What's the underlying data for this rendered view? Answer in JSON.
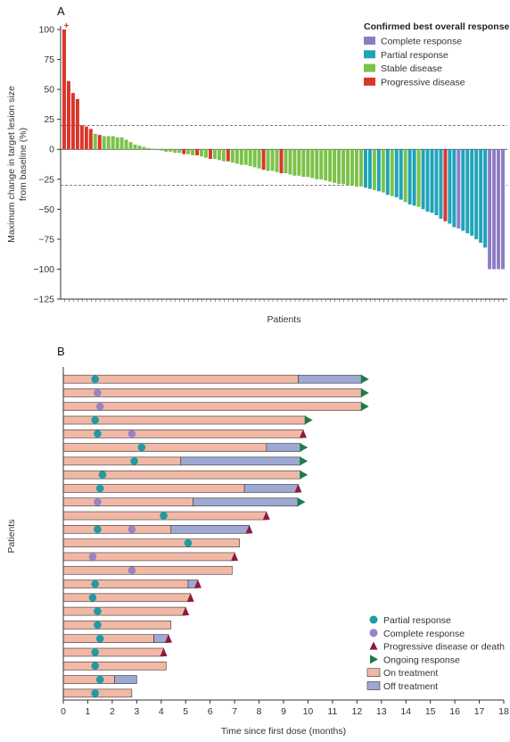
{
  "chart_data": [
    {
      "panel": "A",
      "type": "bar",
      "ylabel_lines": [
        "Maximum change in target lesion size",
        "from baseline (%)"
      ],
      "xlabel": "Patients",
      "ylim": [
        -125,
        100
      ],
      "yticks": [
        100,
        75,
        50,
        25,
        0,
        -25,
        -50,
        -75,
        -100,
        -125
      ],
      "reference_lines": [
        20,
        -30
      ],
      "legend": {
        "title": "Confirmed best overall response",
        "position": "top-right",
        "items": [
          {
            "label": "Complete response",
            "color": "#8e7cc3"
          },
          {
            "label": "Partial response",
            "color": "#20a3b9"
          },
          {
            "label": "Stable disease",
            "color": "#7cc24a"
          },
          {
            "label": "Progressive disease",
            "color": "#d9362b"
          }
        ]
      },
      "colors": {
        "CR": "#8e7cc3",
        "PR": "#20a3b9",
        "SD": "#7cc24a",
        "PD": "#d9362b"
      },
      "bars": [
        {
          "value": 100,
          "response": "PD",
          "marker": "+"
        },
        {
          "value": 57,
          "response": "PD"
        },
        {
          "value": 47,
          "response": "PD"
        },
        {
          "value": 42,
          "response": "PD"
        },
        {
          "value": 20,
          "response": "PD"
        },
        {
          "value": 19,
          "response": "PD"
        },
        {
          "value": 17,
          "response": "PD"
        },
        {
          "value": 13,
          "response": "SD"
        },
        {
          "value": 12,
          "response": "PD"
        },
        {
          "value": 11,
          "response": "SD"
        },
        {
          "value": 11,
          "response": "SD"
        },
        {
          "value": 11,
          "response": "SD"
        },
        {
          "value": 10,
          "response": "SD"
        },
        {
          "value": 10,
          "response": "SD"
        },
        {
          "value": 8,
          "response": "SD"
        },
        {
          "value": 6,
          "response": "SD"
        },
        {
          "value": 4,
          "response": "SD"
        },
        {
          "value": 3,
          "response": "SD"
        },
        {
          "value": 2,
          "response": "SD"
        },
        {
          "value": 1,
          "response": "SD"
        },
        {
          "value": 0.5,
          "response": "SD"
        },
        {
          "value": 0,
          "response": "SD"
        },
        {
          "value": -1,
          "response": "SD"
        },
        {
          "value": -2,
          "response": "SD"
        },
        {
          "value": -2,
          "response": "SD"
        },
        {
          "value": -3,
          "response": "SD"
        },
        {
          "value": -3,
          "response": "SD"
        },
        {
          "value": -4,
          "response": "PD"
        },
        {
          "value": -4,
          "response": "SD"
        },
        {
          "value": -5,
          "response": "SD"
        },
        {
          "value": -5,
          "response": "PD"
        },
        {
          "value": -6,
          "response": "SD"
        },
        {
          "value": -7,
          "response": "SD"
        },
        {
          "value": -8,
          "response": "PD"
        },
        {
          "value": -8,
          "response": "SD"
        },
        {
          "value": -9,
          "response": "SD"
        },
        {
          "value": -10,
          "response": "SD"
        },
        {
          "value": -10,
          "response": "PD"
        },
        {
          "value": -11,
          "response": "SD"
        },
        {
          "value": -12,
          "response": "SD"
        },
        {
          "value": -13,
          "response": "SD"
        },
        {
          "value": -13,
          "response": "SD"
        },
        {
          "value": -14,
          "response": "SD"
        },
        {
          "value": -15,
          "response": "SD"
        },
        {
          "value": -16,
          "response": "SD"
        },
        {
          "value": -17,
          "response": "PD"
        },
        {
          "value": -18,
          "response": "SD"
        },
        {
          "value": -18,
          "response": "SD"
        },
        {
          "value": -19,
          "response": "SD"
        },
        {
          "value": -20,
          "response": "PD"
        },
        {
          "value": -20,
          "response": "SD"
        },
        {
          "value": -21,
          "response": "SD"
        },
        {
          "value": -22,
          "response": "SD"
        },
        {
          "value": -22,
          "response": "SD"
        },
        {
          "value": -23,
          "response": "SD"
        },
        {
          "value": -23,
          "response": "SD"
        },
        {
          "value": -24,
          "response": "SD"
        },
        {
          "value": -25,
          "response": "SD"
        },
        {
          "value": -25,
          "response": "SD"
        },
        {
          "value": -26,
          "response": "SD"
        },
        {
          "value": -27,
          "response": "SD"
        },
        {
          "value": -28,
          "response": "SD"
        },
        {
          "value": -29,
          "response": "SD"
        },
        {
          "value": -29,
          "response": "SD"
        },
        {
          "value": -30,
          "response": "SD"
        },
        {
          "value": -30,
          "response": "SD"
        },
        {
          "value": -31,
          "response": "SD"
        },
        {
          "value": -31,
          "response": "SD"
        },
        {
          "value": -32,
          "response": "PR"
        },
        {
          "value": -33,
          "response": "PR"
        },
        {
          "value": -34,
          "response": "SD"
        },
        {
          "value": -35,
          "response": "PR"
        },
        {
          "value": -36,
          "response": "SD"
        },
        {
          "value": -38,
          "response": "PR"
        },
        {
          "value": -39,
          "response": "SD"
        },
        {
          "value": -40,
          "response": "PR"
        },
        {
          "value": -42,
          "response": "PR"
        },
        {
          "value": -44,
          "response": "SD"
        },
        {
          "value": -46,
          "response": "PR"
        },
        {
          "value": -47,
          "response": "PR"
        },
        {
          "value": -48,
          "response": "SD"
        },
        {
          "value": -50,
          "response": "PR"
        },
        {
          "value": -52,
          "response": "PR"
        },
        {
          "value": -53,
          "response": "PR"
        },
        {
          "value": -55,
          "response": "PR"
        },
        {
          "value": -58,
          "response": "PR"
        },
        {
          "value": -60,
          "response": "PD"
        },
        {
          "value": -62,
          "response": "PR"
        },
        {
          "value": -65,
          "response": "PR"
        },
        {
          "value": -66,
          "response": "CR"
        },
        {
          "value": -68,
          "response": "PR"
        },
        {
          "value": -70,
          "response": "PR"
        },
        {
          "value": -72,
          "response": "PR"
        },
        {
          "value": -75,
          "response": "PR"
        },
        {
          "value": -78,
          "response": "PR"
        },
        {
          "value": -82,
          "response": "PR"
        },
        {
          "value": -100,
          "response": "CR"
        },
        {
          "value": -100,
          "response": "CR"
        },
        {
          "value": -100,
          "response": "CR"
        },
        {
          "value": -100,
          "response": "CR"
        }
      ]
    },
    {
      "panel": "B",
      "type": "swimmer",
      "xlabel": "Time since first dose (months)",
      "ylabel": "Patients",
      "xlim": [
        0,
        18
      ],
      "xticks": [
        0,
        1,
        2,
        3,
        4,
        5,
        6,
        7,
        8,
        9,
        10,
        11,
        12,
        13,
        14,
        15,
        16,
        17,
        18
      ],
      "colors": {
        "on_treatment": "#f2b8a6",
        "off_treatment": "#9ea9d3",
        "partial_response": "#1f9aa6",
        "complete_response": "#9b82c4",
        "progression": "#8e1b3c",
        "ongoing": "#1f7a4e"
      },
      "legend": {
        "position": "bottom-right",
        "items": [
          {
            "label": "Partial response",
            "kind": "pr"
          },
          {
            "label": "Complete response",
            "kind": "cr"
          },
          {
            "label": "Progressive disease or death",
            "kind": "pd"
          },
          {
            "label": "Ongoing response",
            "kind": "ongoing"
          },
          {
            "label": "On treatment",
            "kind": "on"
          },
          {
            "label": "Off treatment",
            "kind": "off"
          }
        ]
      },
      "patients": [
        {
          "on_end": 9.6,
          "off_end": 12.2,
          "pr": 1.3,
          "cr": null,
          "end": "ongoing"
        },
        {
          "on_end": 12.2,
          "off_end": null,
          "pr": null,
          "cr": 1.4,
          "end": "ongoing"
        },
        {
          "on_end": 12.2,
          "off_end": null,
          "pr": null,
          "cr": 1.5,
          "end": "ongoing"
        },
        {
          "on_end": 9.9,
          "off_end": null,
          "pr": 1.3,
          "cr": null,
          "end": "ongoing"
        },
        {
          "on_end": 9.8,
          "off_end": null,
          "pr": 1.4,
          "cr": 2.8,
          "end": "pd"
        },
        {
          "on_end": 8.3,
          "off_end": 9.7,
          "pr": 3.2,
          "cr": null,
          "end": "ongoing"
        },
        {
          "on_end": 4.8,
          "off_end": 9.7,
          "pr": 2.9,
          "cr": null,
          "end": "ongoing"
        },
        {
          "on_end": 9.7,
          "off_end": null,
          "pr": 1.6,
          "cr": null,
          "end": "ongoing"
        },
        {
          "on_end": 7.4,
          "off_end": 9.6,
          "pr": 1.5,
          "cr": null,
          "end": "pd"
        },
        {
          "on_end": 5.3,
          "off_end": 9.6,
          "pr": null,
          "cr": 1.4,
          "end": "ongoing"
        },
        {
          "on_end": 8.3,
          "off_end": null,
          "pr": 4.1,
          "cr": null,
          "end": "pd"
        },
        {
          "on_end": 4.4,
          "off_end": 7.6,
          "pr": 1.4,
          "cr": 2.8,
          "end": "pd"
        },
        {
          "on_end": 7.2,
          "off_end": null,
          "pr": 5.1,
          "cr": null,
          "end": "none"
        },
        {
          "on_end": 7.0,
          "off_end": null,
          "pr": null,
          "cr": 1.2,
          "end": "pd"
        },
        {
          "on_end": 6.9,
          "off_end": null,
          "pr": null,
          "cr": 2.8,
          "end": "none"
        },
        {
          "on_end": 5.1,
          "off_end": 5.5,
          "pr": 1.3,
          "cr": null,
          "end": "pd"
        },
        {
          "on_end": 5.2,
          "off_end": null,
          "pr": 1.2,
          "cr": null,
          "end": "pd"
        },
        {
          "on_end": 5.0,
          "off_end": null,
          "pr": 1.4,
          "cr": null,
          "end": "pd"
        },
        {
          "on_end": 4.4,
          "off_end": null,
          "pr": 1.4,
          "cr": null,
          "end": "none"
        },
        {
          "on_end": 3.7,
          "off_end": 4.3,
          "pr": 1.5,
          "cr": null,
          "end": "pd"
        },
        {
          "on_end": 4.1,
          "off_end": null,
          "pr": 1.3,
          "cr": null,
          "end": "pd"
        },
        {
          "on_end": 4.2,
          "off_end": null,
          "pr": 1.3,
          "cr": null,
          "end": "none"
        },
        {
          "on_end": 2.1,
          "off_end": 3.0,
          "pr": 1.5,
          "cr": null,
          "end": "none"
        },
        {
          "on_end": 2.8,
          "off_end": null,
          "pr": 1.3,
          "cr": null,
          "end": "none"
        }
      ]
    }
  ]
}
